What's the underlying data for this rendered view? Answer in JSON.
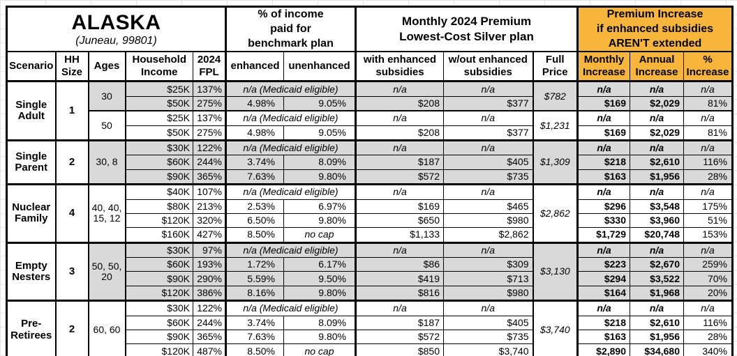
{
  "title": {
    "state": "ALASKA",
    "location": "(Juneau, 99801)"
  },
  "colors": {
    "accent_orange": "#F7B53C",
    "shade_gray": "#D9D9D9",
    "border_black": "#000000"
  },
  "header": {
    "group_income_pct": "% of income\npaid for\nbenchmark plan",
    "group_premium": "Monthly 2024 Premium\nLowest-Cost Silver plan",
    "group_increase": "Premium Increase\nif enhanced subsidies\nAREN'T extended",
    "cols": {
      "scenario": "Scenario",
      "hh_size": "HH\nSize",
      "ages": "Ages",
      "income": "Household\nIncome",
      "fpl": "2024\nFPL",
      "enhanced": "enhanced",
      "unenhanced": "unenhanced",
      "with_sub": "with enhanced\nsubsidies",
      "wout_sub": "w/out enhanced\nsubsidies",
      "full_price": "Full\nPrice",
      "inc_monthly": "Monthly\nIncrease",
      "inc_annual": "Annual\nIncrease",
      "inc_pct": "%\nIncrease"
    }
  },
  "table": {
    "groups": [
      {
        "scenario": "Single Adult",
        "hh_size": "1",
        "subgroups": [
          {
            "ages": "30",
            "full_price": "$782",
            "shaded": true,
            "rows": [
              {
                "income": "$25K",
                "fpl": "137%",
                "note": "n/a (Medicaid eligible)",
                "premium_with": "n/a",
                "premium_without": "n/a",
                "inc_monthly": "n/a",
                "inc_annual": "n/a",
                "inc_pct": "n/a"
              },
              {
                "income": "$50K",
                "fpl": "275%",
                "pct_enhanced": "4.98%",
                "pct_unenhanced": "9.05%",
                "premium_with": "$208",
                "premium_without": "$377",
                "inc_monthly": "$169",
                "inc_annual": "$2,029",
                "inc_pct": "81%"
              }
            ]
          },
          {
            "ages": "50",
            "full_price": "$1,231",
            "shaded": false,
            "rows": [
              {
                "income": "$25K",
                "fpl": "137%",
                "note": "n/a (Medicaid eligible)",
                "premium_with": "n/a",
                "premium_without": "n/a",
                "inc_monthly": "n/a",
                "inc_annual": "n/a",
                "inc_pct": "n/a"
              },
              {
                "income": "$50K",
                "fpl": "275%",
                "pct_enhanced": "4.98%",
                "pct_unenhanced": "9.05%",
                "premium_with": "$208",
                "premium_without": "$377",
                "inc_monthly": "$169",
                "inc_annual": "$2,029",
                "inc_pct": "81%"
              }
            ]
          }
        ]
      },
      {
        "scenario": "Single Parent",
        "hh_size": "2",
        "subgroups": [
          {
            "ages": "30, 8",
            "full_price": "$1,309",
            "shaded": true,
            "rows": [
              {
                "income": "$30K",
                "fpl": "122%",
                "note": "n/a (Medicaid eligible)",
                "premium_with": "n/a",
                "premium_without": "n/a",
                "inc_monthly": "n/a",
                "inc_annual": "n/a",
                "inc_pct": "n/a"
              },
              {
                "income": "$60K",
                "fpl": "244%",
                "pct_enhanced": "3.74%",
                "pct_unenhanced": "8.09%",
                "premium_with": "$187",
                "premium_without": "$405",
                "inc_monthly": "$218",
                "inc_annual": "$2,610",
                "inc_pct": "116%"
              },
              {
                "income": "$90K",
                "fpl": "365%",
                "pct_enhanced": "7.63%",
                "pct_unenhanced": "9.80%",
                "premium_with": "$572",
                "premium_without": "$735",
                "inc_monthly": "$163",
                "inc_annual": "$1,956",
                "inc_pct": "28%"
              }
            ]
          }
        ]
      },
      {
        "scenario": "Nuclear Family",
        "hh_size": "4",
        "subgroups": [
          {
            "ages": "40, 40, 15, 12",
            "full_price": "$2,862",
            "shaded": false,
            "rows": [
              {
                "income": "$40K",
                "fpl": "107%",
                "note": "n/a (Medicaid eligible)",
                "premium_with": "n/a",
                "premium_without": "n/a",
                "inc_monthly": "n/a",
                "inc_annual": "n/a",
                "inc_pct": "n/a"
              },
              {
                "income": "$80K",
                "fpl": "213%",
                "pct_enhanced": "2.53%",
                "pct_unenhanced": "6.97%",
                "premium_with": "$169",
                "premium_without": "$465",
                "inc_monthly": "$296",
                "inc_annual": "$3,548",
                "inc_pct": "175%"
              },
              {
                "income": "$120K",
                "fpl": "320%",
                "pct_enhanced": "6.50%",
                "pct_unenhanced": "9.80%",
                "premium_with": "$650",
                "premium_without": "$980",
                "inc_monthly": "$330",
                "inc_annual": "$3,960",
                "inc_pct": "51%"
              },
              {
                "income": "$160K",
                "fpl": "427%",
                "pct_enhanced": "8.50%",
                "pct_unenhanced": "no cap",
                "premium_with": "$1,133",
                "premium_without": "$2,862",
                "inc_monthly": "$1,729",
                "inc_annual": "$20,748",
                "inc_pct": "153%"
              }
            ]
          }
        ]
      },
      {
        "scenario": "Empty Nesters",
        "hh_size": "3",
        "subgroups": [
          {
            "ages": "50, 50, 20",
            "full_price": "$3,130",
            "shaded": true,
            "rows": [
              {
                "income": "$30K",
                "fpl": "97%",
                "note": "n/a (Medicaid eligible)",
                "premium_with": "n/a",
                "premium_without": "n/a",
                "inc_monthly": "n/a",
                "inc_annual": "n/a",
                "inc_pct": "n/a"
              },
              {
                "income": "$60K",
                "fpl": "193%",
                "pct_enhanced": "1.72%",
                "pct_unenhanced": "6.17%",
                "premium_with": "$86",
                "premium_without": "$309",
                "inc_monthly": "$223",
                "inc_annual": "$2,670",
                "inc_pct": "259%"
              },
              {
                "income": "$90K",
                "fpl": "290%",
                "pct_enhanced": "5.59%",
                "pct_unenhanced": "9.50%",
                "premium_with": "$419",
                "premium_without": "$713",
                "inc_monthly": "$294",
                "inc_annual": "$3,522",
                "inc_pct": "70%"
              },
              {
                "income": "$120K",
                "fpl": "386%",
                "pct_enhanced": "8.16%",
                "pct_unenhanced": "9.80%",
                "premium_with": "$816",
                "premium_without": "$980",
                "inc_monthly": "$164",
                "inc_annual": "$1,968",
                "inc_pct": "20%"
              }
            ]
          }
        ]
      },
      {
        "scenario": "Pre-Retirees",
        "hh_size": "2",
        "subgroups": [
          {
            "ages": "60, 60",
            "full_price": "$3,740",
            "shaded": false,
            "rows": [
              {
                "income": "$30K",
                "fpl": "122%",
                "note": "n/a (Medicaid eligible)",
                "premium_with": "n/a",
                "premium_without": "n/a",
                "inc_monthly": "n/a",
                "inc_annual": "n/a",
                "inc_pct": "n/a"
              },
              {
                "income": "$60K",
                "fpl": "244%",
                "pct_enhanced": "3.74%",
                "pct_unenhanced": "8.09%",
                "premium_with": "$187",
                "premium_without": "$405",
                "inc_monthly": "$218",
                "inc_annual": "$2,610",
                "inc_pct": "116%"
              },
              {
                "income": "$90K",
                "fpl": "365%",
                "pct_enhanced": "7.63%",
                "pct_unenhanced": "9.80%",
                "premium_with": "$572",
                "premium_without": "$735",
                "inc_monthly": "$163",
                "inc_annual": "$1,956",
                "inc_pct": "28%"
              },
              {
                "income": "$120K",
                "fpl": "487%",
                "pct_enhanced": "8.50%",
                "pct_unenhanced": "no cap",
                "premium_with": "$850",
                "premium_without": "$3,740",
                "inc_monthly": "$2,890",
                "inc_annual": "$34,680",
                "inc_pct": "340%"
              }
            ]
          }
        ]
      }
    ]
  },
  "chart_data": {
    "type": "table",
    "title": "ALASKA (Juneau, 99801)",
    "column_groups": [
      "% of income paid for benchmark plan",
      "Monthly 2024 Premium Lowest-Cost Silver plan",
      "Premium Increase if enhanced subsidies AREN'T extended"
    ],
    "columns": [
      "Scenario",
      "HH Size",
      "Ages",
      "Household Income",
      "2024 FPL",
      "enhanced",
      "unenhanced",
      "with enhanced subsidies",
      "w/out enhanced subsidies",
      "Full Price",
      "Monthly Increase",
      "Annual Increase",
      "% Increase"
    ],
    "rows": [
      [
        "Single Adult",
        "1",
        "30",
        "$25K",
        "137%",
        "n/a (Medicaid eligible)",
        "n/a (Medicaid eligible)",
        "n/a",
        "n/a",
        "$782",
        "n/a",
        "n/a",
        "n/a"
      ],
      [
        "Single Adult",
        "1",
        "30",
        "$50K",
        "275%",
        "4.98%",
        "9.05%",
        "$208",
        "$377",
        "$782",
        "$169",
        "$2,029",
        "81%"
      ],
      [
        "Single Adult",
        "1",
        "50",
        "$25K",
        "137%",
        "n/a (Medicaid eligible)",
        "n/a (Medicaid eligible)",
        "n/a",
        "n/a",
        "$1,231",
        "n/a",
        "n/a",
        "n/a"
      ],
      [
        "Single Adult",
        "1",
        "50",
        "$50K",
        "275%",
        "4.98%",
        "9.05%",
        "$208",
        "$377",
        "$1,231",
        "$169",
        "$2,029",
        "81%"
      ],
      [
        "Single Parent",
        "2",
        "30, 8",
        "$30K",
        "122%",
        "n/a (Medicaid eligible)",
        "n/a (Medicaid eligible)",
        "n/a",
        "n/a",
        "$1,309",
        "n/a",
        "n/a",
        "n/a"
      ],
      [
        "Single Parent",
        "2",
        "30, 8",
        "$60K",
        "244%",
        "3.74%",
        "8.09%",
        "$187",
        "$405",
        "$1,309",
        "$218",
        "$2,610",
        "116%"
      ],
      [
        "Single Parent",
        "2",
        "30, 8",
        "$90K",
        "365%",
        "7.63%",
        "9.80%",
        "$572",
        "$735",
        "$1,309",
        "$163",
        "$1,956",
        "28%"
      ],
      [
        "Nuclear Family",
        "4",
        "40, 40, 15, 12",
        "$40K",
        "107%",
        "n/a (Medicaid eligible)",
        "n/a (Medicaid eligible)",
        "n/a",
        "n/a",
        "$2,862",
        "n/a",
        "n/a",
        "n/a"
      ],
      [
        "Nuclear Family",
        "4",
        "40, 40, 15, 12",
        "$80K",
        "213%",
        "2.53%",
        "6.97%",
        "$169",
        "$465",
        "$2,862",
        "$296",
        "$3,548",
        "175%"
      ],
      [
        "Nuclear Family",
        "4",
        "40, 40, 15, 12",
        "$120K",
        "320%",
        "6.50%",
        "9.80%",
        "$650",
        "$980",
        "$2,862",
        "$330",
        "$3,960",
        "51%"
      ],
      [
        "Nuclear Family",
        "4",
        "40, 40, 15, 12",
        "$160K",
        "427%",
        "8.50%",
        "no cap",
        "$1,133",
        "$2,862",
        "$2,862",
        "$1,729",
        "$20,748",
        "153%"
      ],
      [
        "Empty Nesters",
        "3",
        "50, 50, 20",
        "$30K",
        "97%",
        "n/a (Medicaid eligible)",
        "n/a (Medicaid eligible)",
        "n/a",
        "n/a",
        "$3,130",
        "n/a",
        "n/a",
        "n/a"
      ],
      [
        "Empty Nesters",
        "3",
        "50, 50, 20",
        "$60K",
        "193%",
        "1.72%",
        "6.17%",
        "$86",
        "$309",
        "$3,130",
        "$223",
        "$2,670",
        "259%"
      ],
      [
        "Empty Nesters",
        "3",
        "50, 50, 20",
        "$90K",
        "290%",
        "5.59%",
        "9.50%",
        "$419",
        "$713",
        "$3,130",
        "$294",
        "$3,522",
        "70%"
      ],
      [
        "Empty Nesters",
        "3",
        "50, 50, 20",
        "$120K",
        "386%",
        "8.16%",
        "9.80%",
        "$816",
        "$980",
        "$3,130",
        "$164",
        "$1,968",
        "20%"
      ],
      [
        "Pre-Retirees",
        "2",
        "60, 60",
        "$30K",
        "122%",
        "n/a (Medicaid eligible)",
        "n/a (Medicaid eligible)",
        "n/a",
        "n/a",
        "$3,740",
        "n/a",
        "n/a",
        "n/a"
      ],
      [
        "Pre-Retirees",
        "2",
        "60, 60",
        "$60K",
        "244%",
        "3.74%",
        "8.09%",
        "$187",
        "$405",
        "$3,740",
        "$218",
        "$2,610",
        "116%"
      ],
      [
        "Pre-Retirees",
        "2",
        "60, 60",
        "$90K",
        "365%",
        "7.63%",
        "9.80%",
        "$572",
        "$735",
        "$3,740",
        "$163",
        "$1,956",
        "28%"
      ],
      [
        "Pre-Retirees",
        "2",
        "60, 60",
        "$120K",
        "487%",
        "8.50%",
        "no cap",
        "$850",
        "$3,740",
        "$3,740",
        "$2,890",
        "$34,680",
        "340%"
      ]
    ]
  }
}
